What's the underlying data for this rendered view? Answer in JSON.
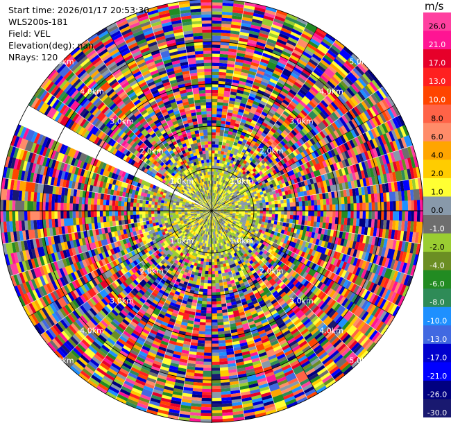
{
  "header": {
    "start_time": "Start time: 2026/01/17 20:53:30",
    "device": "WLS200s-181",
    "field": "Field: VEL",
    "elevation": "Elevation(deg): nan",
    "nrays": "NRays: 120"
  },
  "colorbar": {
    "unit": "m/s",
    "ticks": [
      "26.0",
      "21.0",
      "17.0",
      "13.0",
      "10.0",
      "8.0",
      "6.0",
      "4.0",
      "2.0",
      "1.0",
      "0.0",
      "-1.0",
      "-2.0",
      "-4.0",
      "-6.0",
      "-8.0",
      "-10.0",
      "-13.0",
      "-17.0",
      "-21.0",
      "-26.0",
      "-30.0"
    ],
    "colors": [
      "#ff40a0",
      "#ff1493",
      "#e6002a",
      "#ff2020",
      "#ff4500",
      "#ff6347",
      "#ff8c69",
      "#ffa500",
      "#ffcc00",
      "#ffff33",
      "#8899aa",
      "#6e6e6e",
      "#9acd32",
      "#6b8e23",
      "#228b22",
      "#2e8b57",
      "#1e90ff",
      "#4169e1",
      "#0000cd",
      "#0000ff",
      "#000080",
      "#191970"
    ]
  },
  "chart_data": {
    "type": "polar-ppi",
    "field": "VEL",
    "nrays": 120,
    "range_rings_km": [
      1.0,
      2.0,
      3.0,
      4.0,
      5.0
    ],
    "ring_labels": [
      "1.0km",
      "2.0km",
      "3.0km",
      "4.0km",
      "5.0km"
    ],
    "max_range_km": 5.0,
    "missing_sector_deg": [
      292,
      300
    ],
    "value_range": [
      -30.0,
      26.0
    ]
  }
}
